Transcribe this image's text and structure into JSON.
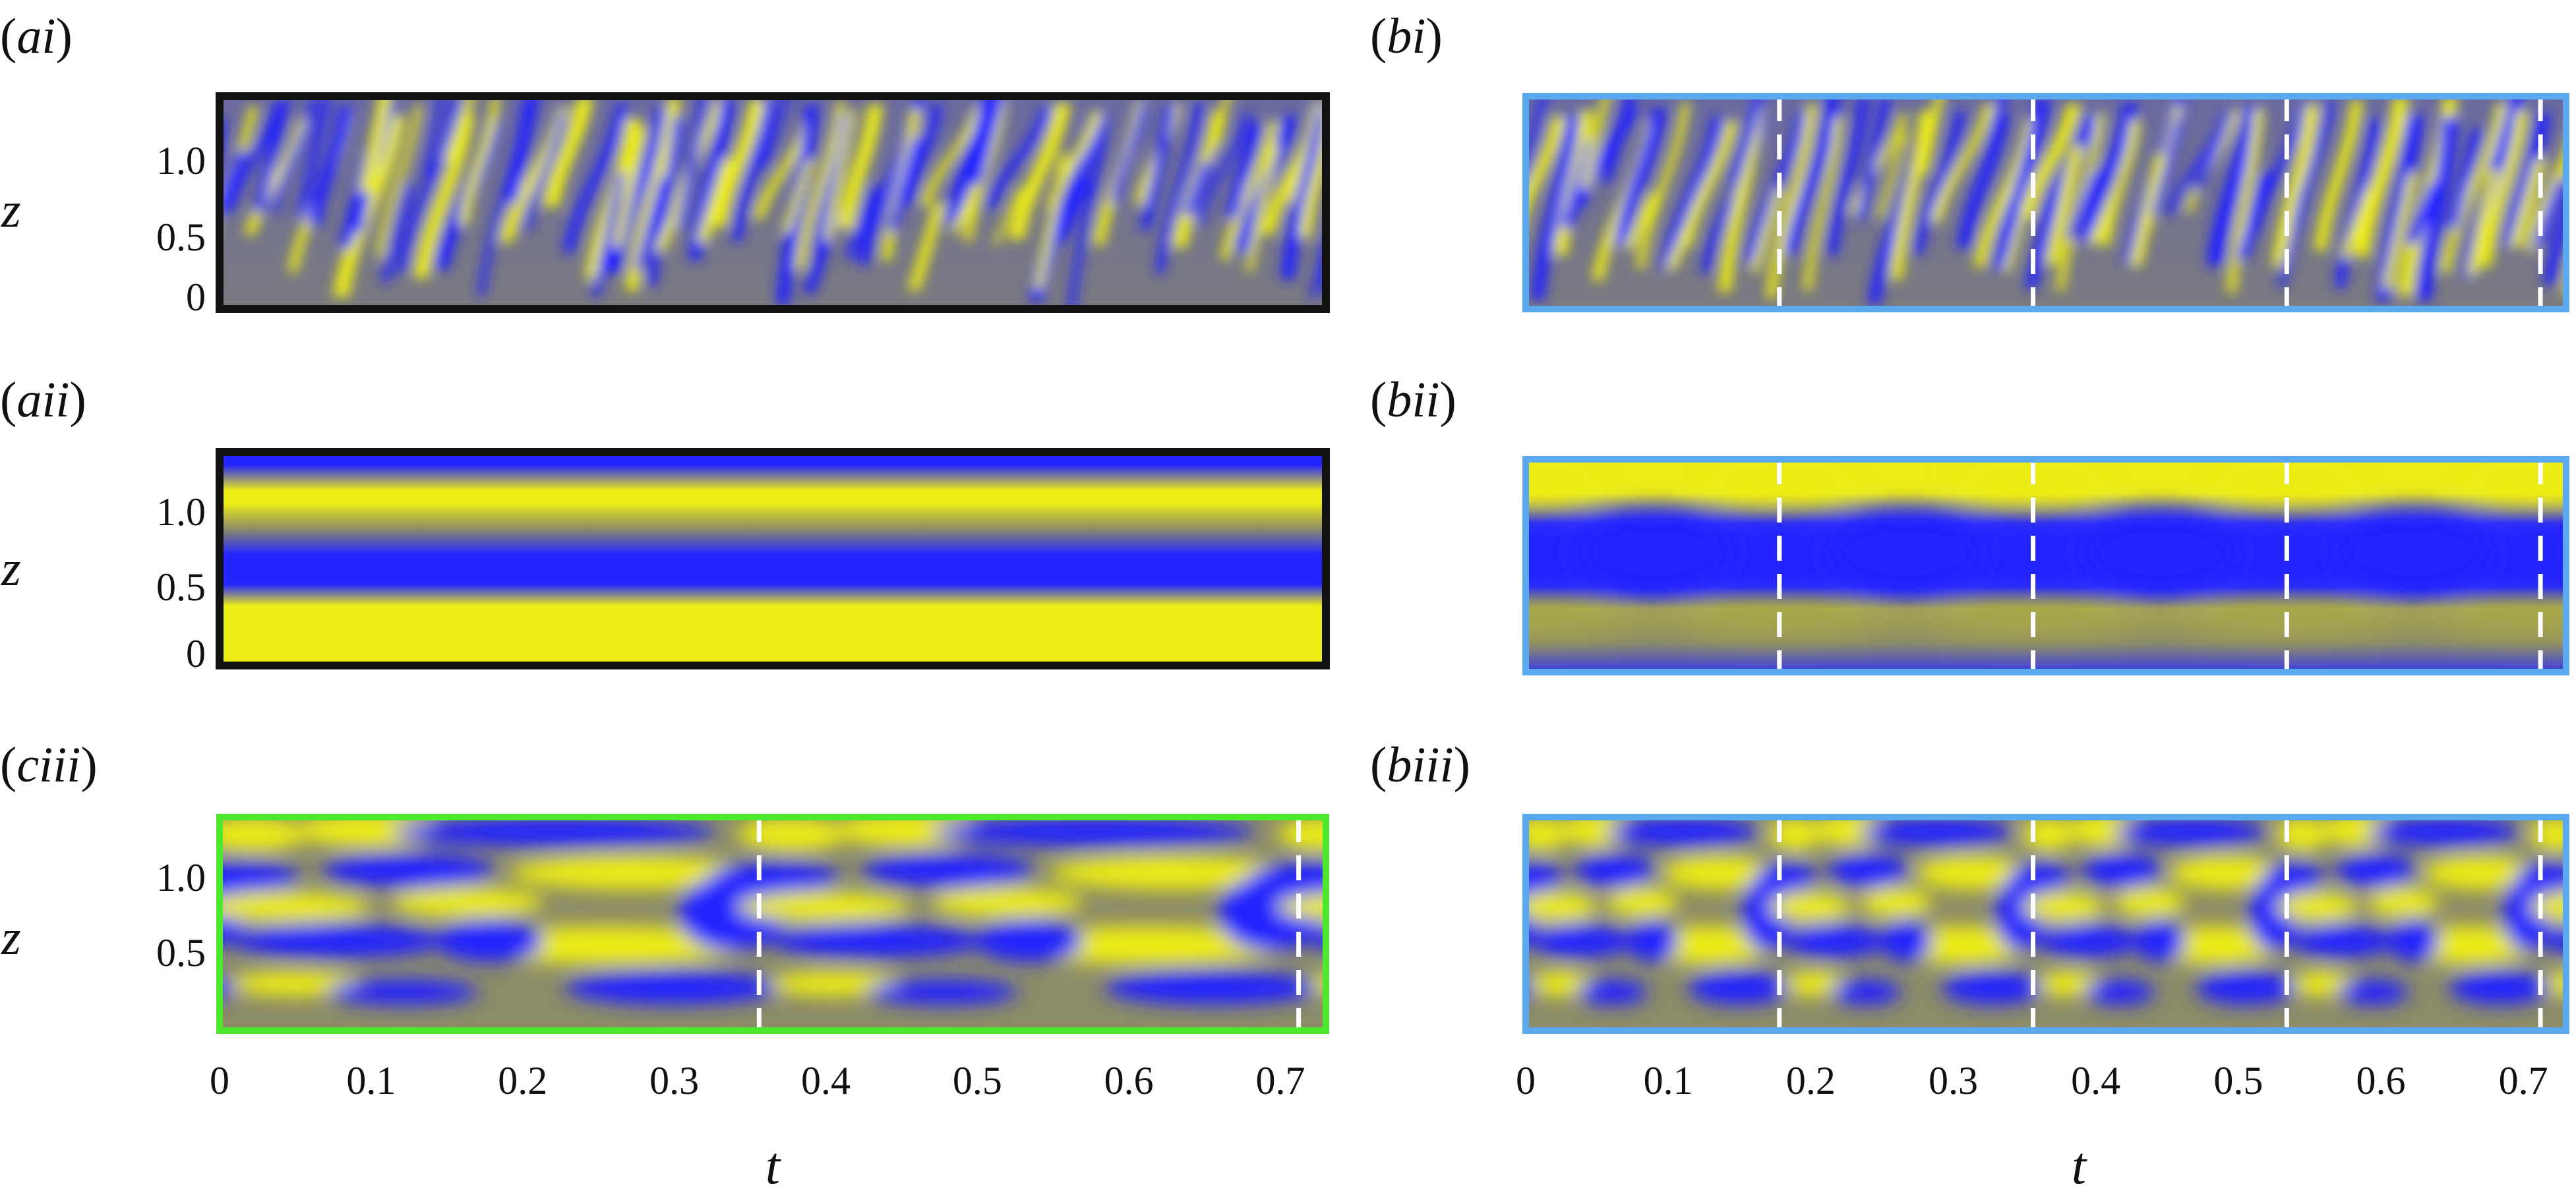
{
  "colors": {
    "low": "#2424ff",
    "mid": "#8c8c68",
    "high": "#ecec16",
    "frame_ai": "#111111",
    "frame_b": "#5aa8ee",
    "frame_ciii": "#4ee82e",
    "period_line": "#ffffff"
  },
  "axes": {
    "y_label": "z",
    "x_label": "t",
    "y_ticks_full": [
      "0",
      "0.5",
      "1.0"
    ],
    "y_ticks_ciii": [
      "0.5",
      "1.0"
    ],
    "x_ticks": [
      "0",
      "0.1",
      "0.2",
      "0.3",
      "0.4",
      "0.5",
      "0.6",
      "0.7"
    ],
    "x_range": [
      0,
      0.73
    ],
    "z_range": [
      0,
      1.35
    ]
  },
  "panels": [
    {
      "id": "ai",
      "label_prefix": "(",
      "label_it": "ai",
      "label_suffix": ")",
      "pattern": "turbulent",
      "frame": "black",
      "period_lines_t": []
    },
    {
      "id": "bi",
      "label_prefix": "(",
      "label_it": "bi",
      "label_suffix": ")",
      "pattern": "turbulent",
      "frame": "blue",
      "period_lines_t": [
        0.178,
        0.356,
        0.534,
        0.712
      ]
    },
    {
      "id": "aii",
      "label_prefix": "(",
      "label_it": "aii",
      "label_suffix": ")",
      "pattern": "bands",
      "frame": "black",
      "period_lines_t": []
    },
    {
      "id": "bii",
      "label_prefix": "(",
      "label_it": "bii",
      "label_suffix": ")",
      "pattern": "wavy",
      "frame": "blue",
      "period_lines_t": [
        0.178,
        0.356,
        0.534,
        0.712
      ]
    },
    {
      "id": "ciii",
      "label_prefix": "(",
      "label_it": "ciii",
      "label_suffix": ")",
      "pattern": "cells",
      "frame": "green",
      "period_lines_t": [
        0.356,
        0.712
      ]
    },
    {
      "id": "biii",
      "label_prefix": "(",
      "label_it": "biii",
      "label_suffix": ")",
      "pattern": "cells",
      "frame": "blue",
      "period_lines_t": [
        0.178,
        0.356,
        0.534,
        0.712
      ]
    }
  ]
}
